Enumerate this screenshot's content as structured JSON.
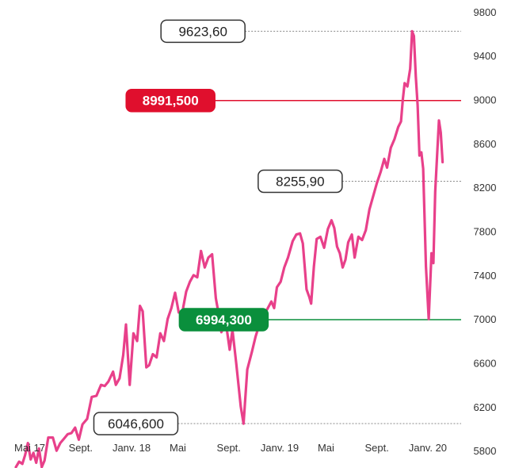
{
  "chart_data": {
    "type": "line",
    "y_ticks": [
      5800,
      6200,
      6600,
      7000,
      7400,
      7800,
      8200,
      8600,
      9000,
      9400,
      9800
    ],
    "y_tick_labels": [
      "5800",
      "6200",
      "6600",
      "7000",
      "7400",
      "7800",
      "8200",
      "8600",
      "9000",
      "9400",
      "9800"
    ],
    "ylim": [
      5700,
      9850
    ],
    "x_ticks": [
      {
        "label": "Mai 17",
        "x": 3
      },
      {
        "label": "Sept.",
        "x": 14
      },
      {
        "label": "Janv. 18",
        "x": 25
      },
      {
        "label": "Mai",
        "x": 35
      },
      {
        "label": "Sept.",
        "x": 46
      },
      {
        "label": "Janv. 19",
        "x": 57
      },
      {
        "label": "Mai",
        "x": 67
      },
      {
        "label": "Sept.",
        "x": 78
      },
      {
        "label": "Janv. 20",
        "x": 89
      }
    ],
    "xlim": [
      0,
      95
    ],
    "series": [
      {
        "color": "#e8408a",
        "points": [
          [
            0,
            5650
          ],
          [
            0.7,
            5700
          ],
          [
            1.4,
            5680
          ],
          [
            2,
            5760
          ],
          [
            2.6,
            5870
          ],
          [
            3.2,
            5720
          ],
          [
            3.8,
            5780
          ],
          [
            4.4,
            5690
          ],
          [
            5,
            5820
          ],
          [
            5.6,
            5650
          ],
          [
            6.2,
            5710
          ],
          [
            7,
            5920
          ],
          [
            8,
            5920
          ],
          [
            8.8,
            5800
          ],
          [
            9.6,
            5870
          ],
          [
            10.4,
            5910
          ],
          [
            11.2,
            5950
          ],
          [
            12,
            5960
          ],
          [
            12.8,
            6010
          ],
          [
            13.6,
            5900
          ],
          [
            14.4,
            6040
          ],
          [
            15.4,
            6090
          ],
          [
            16.4,
            6290
          ],
          [
            17.4,
            6300
          ],
          [
            18.4,
            6400
          ],
          [
            19.2,
            6390
          ],
          [
            20,
            6430
          ],
          [
            21,
            6520
          ],
          [
            21.6,
            6400
          ],
          [
            22.4,
            6460
          ],
          [
            23.2,
            6670
          ],
          [
            23.8,
            6950
          ],
          [
            24.6,
            6400
          ],
          [
            25.4,
            6870
          ],
          [
            26.2,
            6800
          ],
          [
            26.8,
            7120
          ],
          [
            27.4,
            7070
          ],
          [
            28.2,
            6560
          ],
          [
            28.8,
            6580
          ],
          [
            29.6,
            6680
          ],
          [
            30.4,
            6650
          ],
          [
            31.2,
            6870
          ],
          [
            32,
            6800
          ],
          [
            32.8,
            7000
          ],
          [
            33.6,
            7100
          ],
          [
            34.4,
            7240
          ],
          [
            35.2,
            7060
          ],
          [
            36,
            7070
          ],
          [
            36.8,
            7250
          ],
          [
            37.6,
            7340
          ],
          [
            38.4,
            7400
          ],
          [
            39.2,
            7380
          ],
          [
            40,
            7620
          ],
          [
            40.8,
            7470
          ],
          [
            41.6,
            7560
          ],
          [
            42.4,
            7590
          ],
          [
            43.2,
            7190
          ],
          [
            43.8,
            7050
          ],
          [
            44.4,
            6880
          ],
          [
            45.4,
            6960
          ],
          [
            46.2,
            6720
          ],
          [
            46.8,
            6900
          ],
          [
            47.6,
            6600
          ],
          [
            48.6,
            6200
          ],
          [
            49.2,
            6046.6
          ],
          [
            50,
            6540
          ],
          [
            51,
            6700
          ],
          [
            51.8,
            6840
          ],
          [
            52.6,
            6950
          ],
          [
            53.4,
            6980
          ],
          [
            54.2,
            7080
          ],
          [
            55.2,
            7160
          ],
          [
            55.8,
            7100
          ],
          [
            56.4,
            7290
          ],
          [
            57.2,
            7340
          ],
          [
            58,
            7470
          ],
          [
            58.8,
            7560
          ],
          [
            59.8,
            7710
          ],
          [
            60.6,
            7770
          ],
          [
            61.4,
            7780
          ],
          [
            62,
            7690
          ],
          [
            62.8,
            7270
          ],
          [
            63.4,
            7200
          ],
          [
            63.8,
            7140
          ],
          [
            64.4,
            7480
          ],
          [
            65,
            7730
          ],
          [
            65.8,
            7750
          ],
          [
            66.6,
            7650
          ],
          [
            67.4,
            7820
          ],
          [
            68.2,
            7900
          ],
          [
            68.8,
            7830
          ],
          [
            69.4,
            7660
          ],
          [
            70,
            7600
          ],
          [
            70.6,
            7470
          ],
          [
            71.2,
            7540
          ],
          [
            71.8,
            7700
          ],
          [
            72.6,
            7770
          ],
          [
            73.2,
            7560
          ],
          [
            74,
            7750
          ],
          [
            74.8,
            7720
          ],
          [
            75.6,
            7810
          ],
          [
            76.4,
            8000
          ],
          [
            77.2,
            8120
          ],
          [
            78,
            8240
          ],
          [
            78.8,
            8340
          ],
          [
            79.6,
            8460
          ],
          [
            80.2,
            8380
          ],
          [
            81,
            8560
          ],
          [
            81.8,
            8640
          ],
          [
            82.6,
            8750
          ],
          [
            83.2,
            8800
          ],
          [
            83.6,
            9000
          ],
          [
            84,
            9150
          ],
          [
            84.6,
            9120
          ],
          [
            85.2,
            9280
          ],
          [
            85.6,
            9623.6
          ],
          [
            86,
            9580
          ],
          [
            86.4,
            9210
          ],
          [
            86.8,
            8950
          ],
          [
            87.2,
            8490
          ],
          [
            87.6,
            8520
          ],
          [
            88,
            8370
          ],
          [
            88.6,
            7480
          ],
          [
            89.2,
            7000
          ],
          [
            89.8,
            7600
          ],
          [
            90.2,
            7510
          ],
          [
            90.6,
            8160
          ],
          [
            91,
            8480
          ],
          [
            91.4,
            8810
          ],
          [
            91.8,
            8700
          ],
          [
            92.2,
            8430
          ]
        ]
      }
    ],
    "annotations": [
      {
        "label": "9623,60",
        "value": 9623.6,
        "style": "neutral",
        "line_from_x": 49.5
      },
      {
        "label": "8991,500",
        "value": 8991.5,
        "style": "red",
        "line_from_x": 43
      },
      {
        "label": "8255,90",
        "value": 8255.9,
        "style": "neutral",
        "line_from_x": 70.5
      },
      {
        "label": "6994,300",
        "value": 6994.3,
        "style": "green",
        "line_from_x": 54.5
      },
      {
        "label": "6046,600",
        "value": 6046.6,
        "style": "neutral",
        "line_from_x": 35
      }
    ],
    "colors": {
      "line": "#e8408a",
      "red": "#e00f2d",
      "green": "#0a8f3c",
      "neutral_border": "#333333",
      "dotted": "#888888"
    },
    "legend": "none",
    "grid": false
  }
}
